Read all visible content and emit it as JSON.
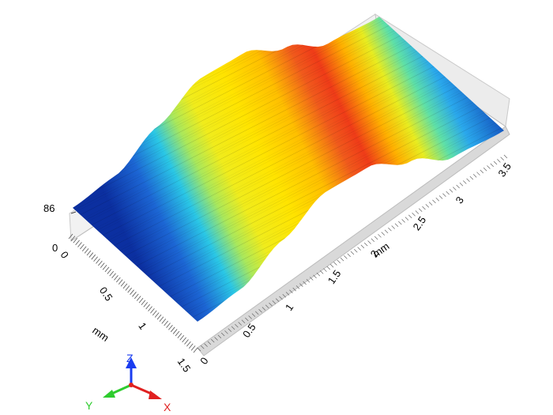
{
  "chart_data": {
    "type": "surface",
    "z_axis": {
      "max_label": "86",
      "min_label": "0",
      "range": [
        0,
        86
      ]
    },
    "y_axis": {
      "label": "mm",
      "ticks": [
        "0",
        "0.5",
        "1",
        "1.5"
      ],
      "range": [
        0,
        1.6
      ]
    },
    "x_axis": {
      "label": "mm",
      "ticks": [
        "0",
        "0.5",
        "1",
        "1.5",
        "2",
        "2.5",
        "3",
        "3.5"
      ],
      "range": [
        0,
        3.6
      ]
    },
    "profile_along_x": {
      "x": [
        0,
        0.5,
        1.0,
        1.5,
        2.0,
        2.5,
        3.0,
        3.6
      ],
      "z": [
        30,
        36,
        62,
        86,
        84,
        60,
        34,
        28
      ]
    },
    "colormap": [
      "#0a2a9a",
      "#1f7fe0",
      "#27d6e8",
      "#d7ec2a",
      "#ffe800",
      "#ff9d00",
      "#e8421a"
    ]
  },
  "triad": {
    "z": "Z",
    "y": "Y",
    "x": "X"
  }
}
